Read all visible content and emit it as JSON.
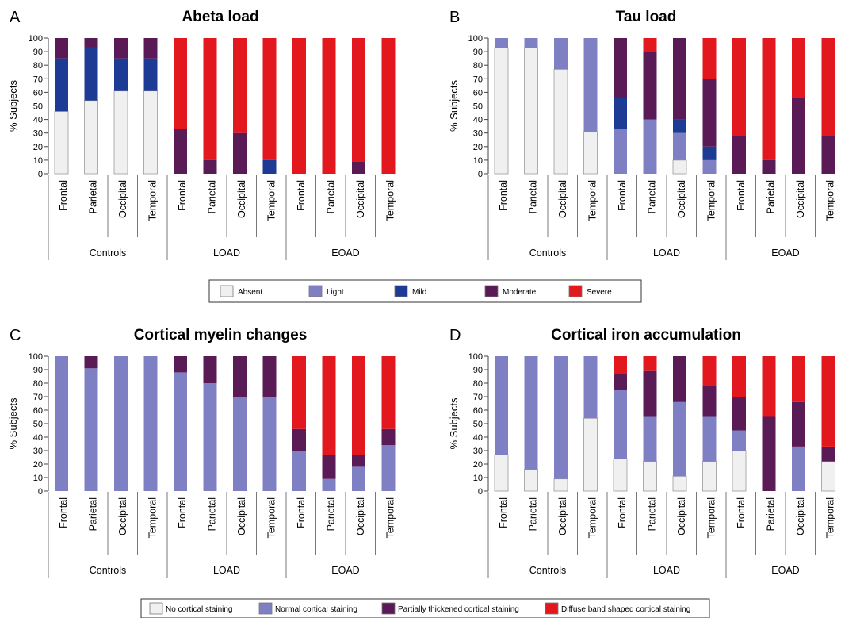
{
  "colors": {
    "absent": "#f0f0f0",
    "light": "#7f80c4",
    "mild": "#1d3b95",
    "moderate": "#5a1a55",
    "severe": "#e3171e",
    "axis": "#555555"
  },
  "legends": [
    {
      "items": [
        {
          "label": "Absent",
          "color": "#f0f0f0"
        },
        {
          "label": "Light",
          "color": "#7f80c4"
        },
        {
          "label": "Mild",
          "color": "#1d3b95"
        },
        {
          "label": "Moderate",
          "color": "#5a1a55"
        },
        {
          "label": "Severe",
          "color": "#e3171e"
        }
      ]
    },
    {
      "items": [
        {
          "label": "No cortical staining",
          "color": "#f0f0f0"
        },
        {
          "label": "Normal cortical staining",
          "color": "#7f80c4"
        },
        {
          "label": "Partially thickened cortical staining",
          "color": "#5a1a55"
        },
        {
          "label": "Diffuse band shaped cortical staining",
          "color": "#e3171e"
        }
      ]
    }
  ],
  "chart_data": [
    {
      "panel": "A",
      "type": "bar",
      "stacked": true,
      "title": "Abeta load",
      "ylabel": "% Subjects",
      "ylim": [
        0,
        100
      ],
      "yticks": [
        0,
        10,
        20,
        30,
        40,
        50,
        60,
        70,
        80,
        90,
        100
      ],
      "groups": [
        "Controls",
        "LOAD",
        "EOAD"
      ],
      "categories": [
        "Frontal",
        "Parietal",
        "Occipital",
        "Temporal",
        "Frontal",
        "Parietal",
        "Occipital",
        "Temporal",
        "Frontal",
        "Parietal",
        "Occipital",
        "Temporal"
      ],
      "series": [
        {
          "name": "Absent",
          "color": "#f0f0f0",
          "values": [
            46,
            54,
            61,
            61,
            0,
            0,
            0,
            0,
            0,
            0,
            0,
            0
          ]
        },
        {
          "name": "Light",
          "color": "#7f80c4",
          "values": [
            0,
            0,
            0,
            0,
            0,
            0,
            0,
            0,
            0,
            0,
            0,
            0
          ]
        },
        {
          "name": "Mild",
          "color": "#1d3b95",
          "values": [
            39,
            39,
            24,
            24,
            0,
            0,
            0,
            10,
            0,
            0,
            0,
            0
          ]
        },
        {
          "name": "Moderate",
          "color": "#5a1a55",
          "values": [
            15,
            7,
            15,
            15,
            33,
            10,
            30,
            0,
            0,
            0,
            9,
            0
          ]
        },
        {
          "name": "Severe",
          "color": "#e3171e",
          "values": [
            0,
            0,
            0,
            0,
            67,
            90,
            70,
            90,
            100,
            100,
            91,
            100
          ]
        }
      ]
    },
    {
      "panel": "B",
      "type": "bar",
      "stacked": true,
      "title": "Tau load",
      "ylabel": "% Subjects",
      "ylim": [
        0,
        100
      ],
      "yticks": [
        0,
        10,
        20,
        30,
        40,
        50,
        60,
        70,
        80,
        90,
        100
      ],
      "groups": [
        "Controls",
        "LOAD",
        "EOAD"
      ],
      "categories": [
        "Frontal",
        "Parietal",
        "Occipital",
        "Temporal",
        "Frontal",
        "Parietal",
        "Occipital",
        "Temporal",
        "Frontal",
        "Parietal",
        "Occipital",
        "Temporal"
      ],
      "series": [
        {
          "name": "Absent",
          "color": "#f0f0f0",
          "values": [
            93,
            93,
            77,
            31,
            0,
            0,
            10,
            0,
            0,
            0,
            0,
            0
          ]
        },
        {
          "name": "Light",
          "color": "#7f80c4",
          "values": [
            7,
            7,
            23,
            69,
            33,
            40,
            20,
            10,
            0,
            0,
            0,
            0
          ]
        },
        {
          "name": "Mild",
          "color": "#1d3b95",
          "values": [
            0,
            0,
            0,
            0,
            23,
            0,
            10,
            10,
            0,
            0,
            0,
            0
          ]
        },
        {
          "name": "Moderate",
          "color": "#5a1a55",
          "values": [
            0,
            0,
            0,
            0,
            44,
            50,
            60,
            50,
            28,
            10,
            56,
            28
          ]
        },
        {
          "name": "Severe",
          "color": "#e3171e",
          "values": [
            0,
            0,
            0,
            0,
            0,
            10,
            0,
            30,
            72,
            90,
            44,
            72
          ]
        }
      ]
    },
    {
      "panel": "C",
      "type": "bar",
      "stacked": true,
      "title": "Cortical myelin changes",
      "ylabel": "% Subjects",
      "ylim": [
        0,
        100
      ],
      "yticks": [
        0,
        10,
        20,
        30,
        40,
        50,
        60,
        70,
        80,
        90,
        100
      ],
      "groups": [
        "Controls",
        "LOAD",
        "EOAD"
      ],
      "categories": [
        "Frontal",
        "Parietal",
        "Occipital",
        "Temporal",
        "Frontal",
        "Parietal",
        "Occipital",
        "Temporal",
        "Frontal",
        "Parietal",
        "Occipital",
        "Temporal"
      ],
      "series": [
        {
          "name": "No cortical staining",
          "color": "#f0f0f0",
          "values": [
            0,
            0,
            0,
            0,
            0,
            0,
            0,
            0,
            0,
            0,
            0,
            0
          ]
        },
        {
          "name": "Normal cortical staining",
          "color": "#7f80c4",
          "values": [
            100,
            91,
            100,
            100,
            88,
            80,
            70,
            70,
            30,
            9,
            18,
            34
          ]
        },
        {
          "name": "Partially thickened cortical staining",
          "color": "#5a1a55",
          "values": [
            0,
            9,
            0,
            0,
            12,
            20,
            30,
            30,
            16,
            18,
            9,
            12
          ]
        },
        {
          "name": "Diffuse band shaped cortical staining",
          "color": "#e3171e",
          "values": [
            0,
            0,
            0,
            0,
            0,
            0,
            0,
            0,
            54,
            73,
            73,
            54
          ]
        }
      ]
    },
    {
      "panel": "D",
      "type": "bar",
      "stacked": true,
      "title": "Cortical iron accumulation",
      "ylabel": "% Subjects",
      "ylim": [
        0,
        100
      ],
      "yticks": [
        0,
        10,
        20,
        30,
        40,
        50,
        60,
        70,
        80,
        90,
        100
      ],
      "groups": [
        "Controls",
        "LOAD",
        "EOAD"
      ],
      "categories": [
        "Frontal",
        "Parietal",
        "Occipital",
        "Temporal",
        "Frontal",
        "Parietal",
        "Occipital",
        "Temporal",
        "Frontal",
        "Parietal",
        "Occipital",
        "Temporal"
      ],
      "series": [
        {
          "name": "No cortical staining",
          "color": "#f0f0f0",
          "values": [
            27,
            16,
            9,
            54,
            24,
            22,
            11,
            22,
            30,
            0,
            0,
            22
          ]
        },
        {
          "name": "Normal cortical staining",
          "color": "#7f80c4",
          "values": [
            73,
            84,
            91,
            46,
            51,
            33,
            55,
            33,
            15,
            0,
            33,
            0
          ]
        },
        {
          "name": "Partially thickened cortical staining",
          "color": "#5a1a55",
          "values": [
            0,
            0,
            0,
            0,
            12,
            34,
            34,
            23,
            25,
            55,
            33,
            11
          ]
        },
        {
          "name": "Diffuse band shaped cortical staining",
          "color": "#e3171e",
          "values": [
            0,
            0,
            0,
            0,
            13,
            11,
            0,
            22,
            30,
            45,
            34,
            67
          ]
        }
      ]
    }
  ]
}
